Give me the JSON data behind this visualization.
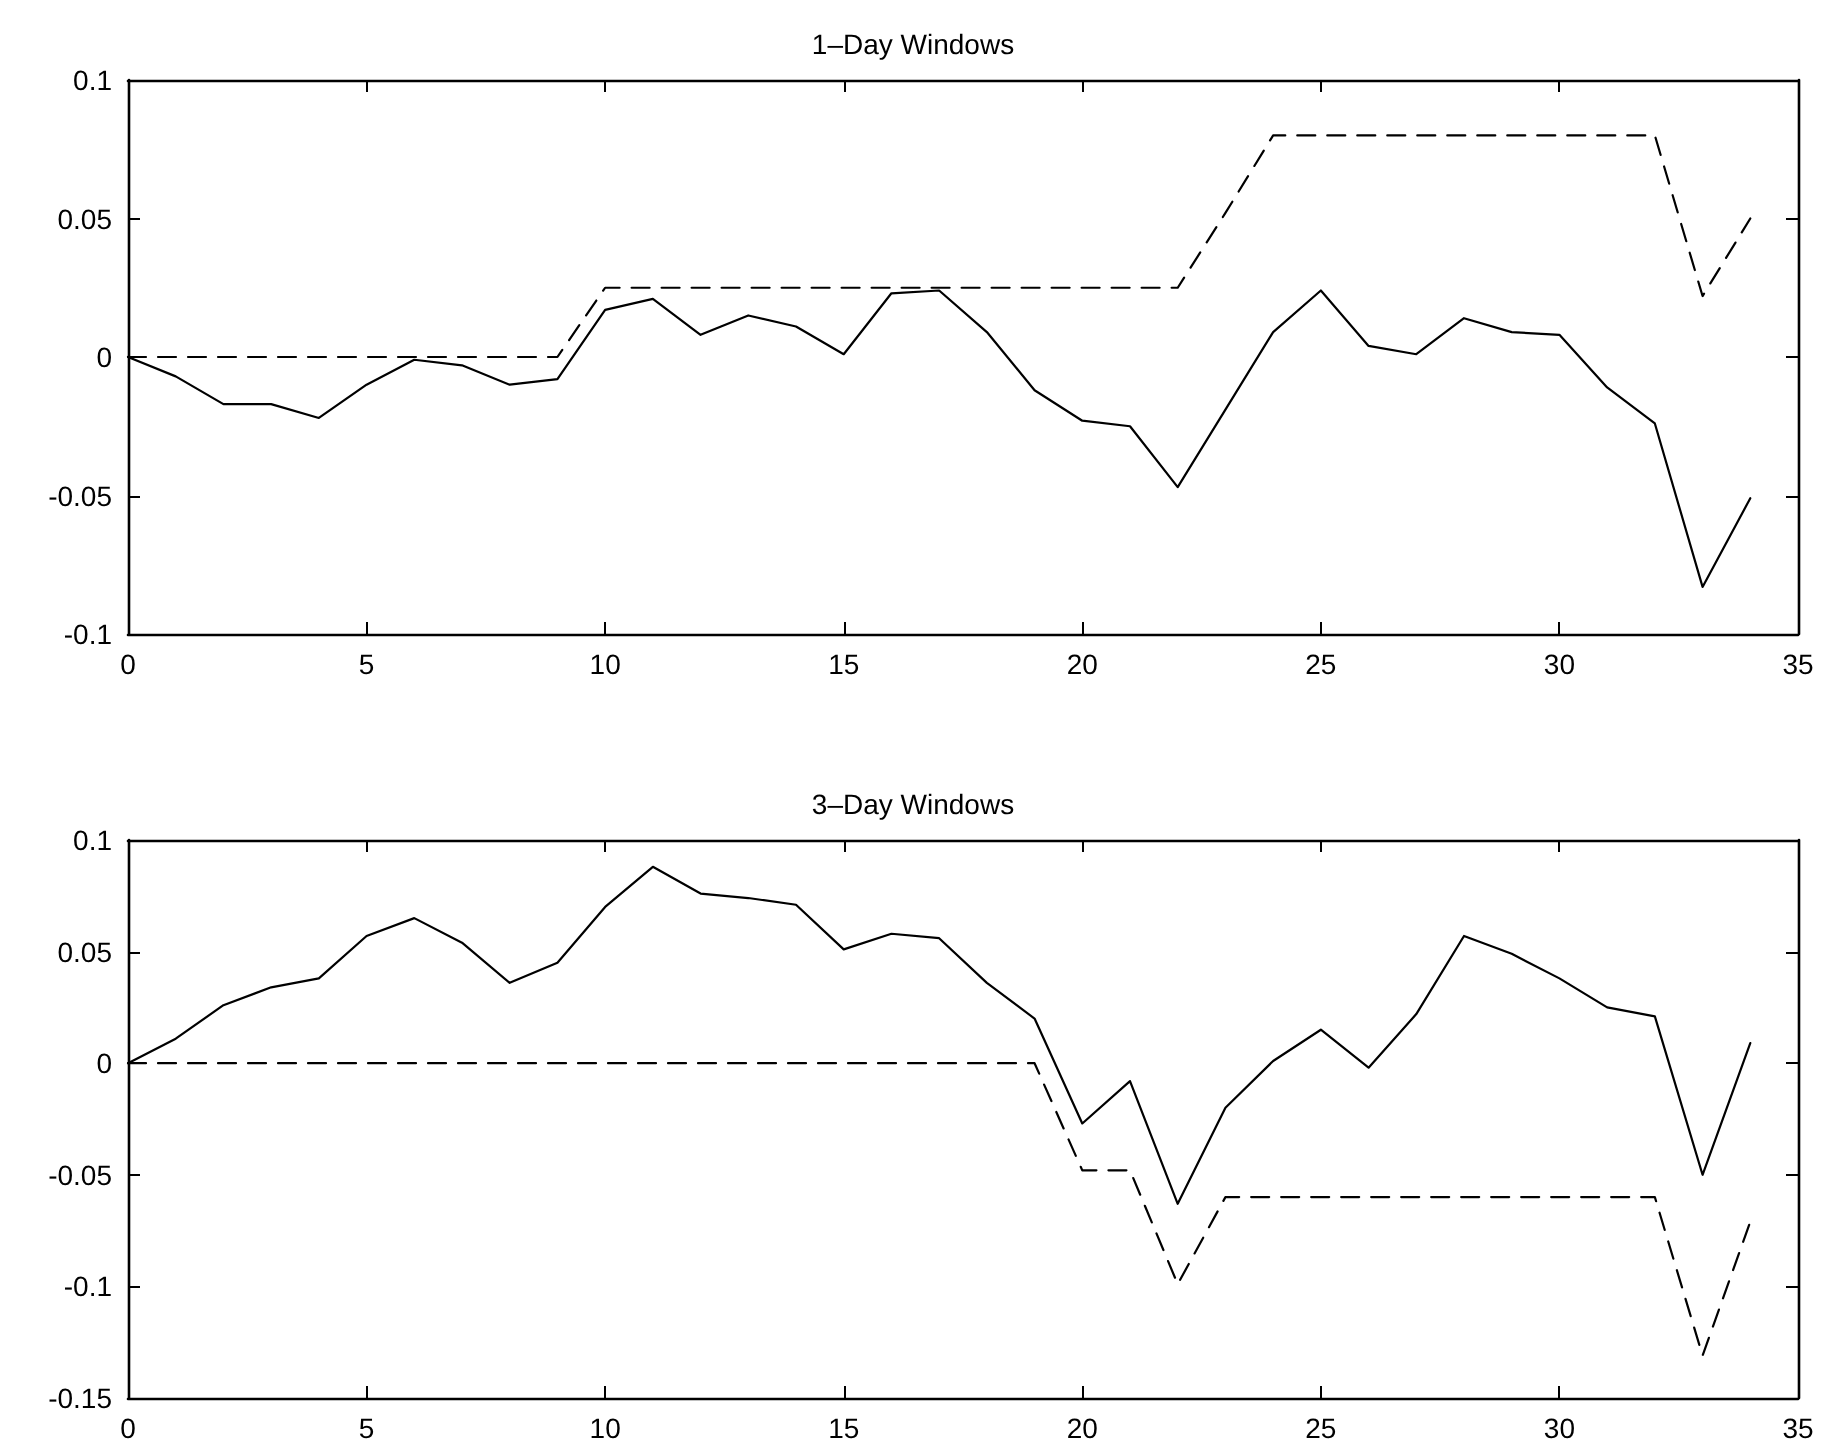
{
  "chart_data": [
    {
      "type": "line",
      "title": "1–Day Windows",
      "x": [
        0,
        1,
        2,
        3,
        4,
        5,
        6,
        7,
        8,
        9,
        10,
        11,
        12,
        13,
        14,
        15,
        16,
        17,
        18,
        19,
        20,
        21,
        22,
        23,
        24,
        25,
        26,
        27,
        28,
        29,
        30,
        31,
        32,
        33,
        34
      ],
      "series": [
        {
          "color": "#000000",
          "line_style": "solid",
          "values": [
            0,
            -0.007,
            -0.017,
            -0.017,
            -0.022,
            -0.01,
            -0.001,
            -0.003,
            -0.01,
            -0.008,
            0.017,
            0.021,
            0.008,
            0.015,
            0.011,
            0.001,
            0.023,
            0.024,
            0.009,
            -0.012,
            -0.023,
            -0.025,
            -0.047,
            -0.019,
            0.009,
            0.024,
            0.004,
            0.001,
            0.014,
            0.009,
            0.008,
            -0.011,
            -0.024,
            -0.083,
            -0.051
          ]
        },
        {
          "color": "#000000",
          "line_style": "dashed",
          "values": [
            0,
            0,
            0,
            0,
            0,
            0,
            0,
            0,
            0,
            0,
            0.025,
            0.025,
            0.025,
            0.025,
            0.025,
            0.025,
            0.025,
            0.025,
            0.025,
            0.025,
            0.025,
            0.025,
            0.025,
            0.052,
            0.08,
            0.08,
            0.08,
            0.08,
            0.08,
            0.08,
            0.08,
            0.08,
            0.08,
            0.022,
            0.05
          ]
        }
      ],
      "xlim": [
        0,
        35
      ],
      "xticks": [
        0,
        5,
        10,
        15,
        20,
        25,
        30,
        35
      ],
      "ylim": [
        -0.1,
        0.1
      ],
      "yticks": [
        -0.1,
        -0.05,
        0,
        0.05,
        0.1
      ],
      "grid": false,
      "marker": "none"
    },
    {
      "type": "line",
      "title": "3–Day Windows",
      "x": [
        0,
        1,
        2,
        3,
        4,
        5,
        6,
        7,
        8,
        9,
        10,
        11,
        12,
        13,
        14,
        15,
        16,
        17,
        18,
        19,
        20,
        21,
        22,
        23,
        24,
        25,
        26,
        27,
        28,
        29,
        30,
        31,
        32,
        33,
        34
      ],
      "series": [
        {
          "color": "#000000",
          "line_style": "solid",
          "values": [
            0,
            0.011,
            0.026,
            0.034,
            0.038,
            0.057,
            0.065,
            0.054,
            0.036,
            0.045,
            0.07,
            0.088,
            0.076,
            0.074,
            0.071,
            0.051,
            0.058,
            0.056,
            0.036,
            0.02,
            -0.027,
            -0.008,
            -0.063,
            -0.02,
            0.001,
            0.015,
            -0.002,
            0.022,
            0.057,
            0.049,
            0.038,
            0.025,
            0.021,
            -0.05,
            0.009
          ]
        },
        {
          "color": "#000000",
          "line_style": "dashed",
          "values": [
            0,
            0,
            0,
            0,
            0,
            0,
            0,
            0,
            0,
            0,
            0,
            0,
            0,
            0,
            0,
            0,
            0,
            0,
            0,
            0,
            -0.048,
            -0.048,
            -0.099,
            -0.06,
            -0.06,
            -0.06,
            -0.06,
            -0.06,
            -0.06,
            -0.06,
            -0.06,
            -0.06,
            -0.06,
            -0.131,
            -0.071
          ]
        }
      ],
      "xlim": [
        0,
        35
      ],
      "xticks": [
        0,
        5,
        10,
        15,
        20,
        25,
        30,
        35
      ],
      "ylim": [
        -0.15,
        0.1
      ],
      "yticks": [
        -0.15,
        -0.1,
        -0.05,
        0,
        0.05,
        0.1
      ],
      "grid": false,
      "marker": "none"
    }
  ]
}
